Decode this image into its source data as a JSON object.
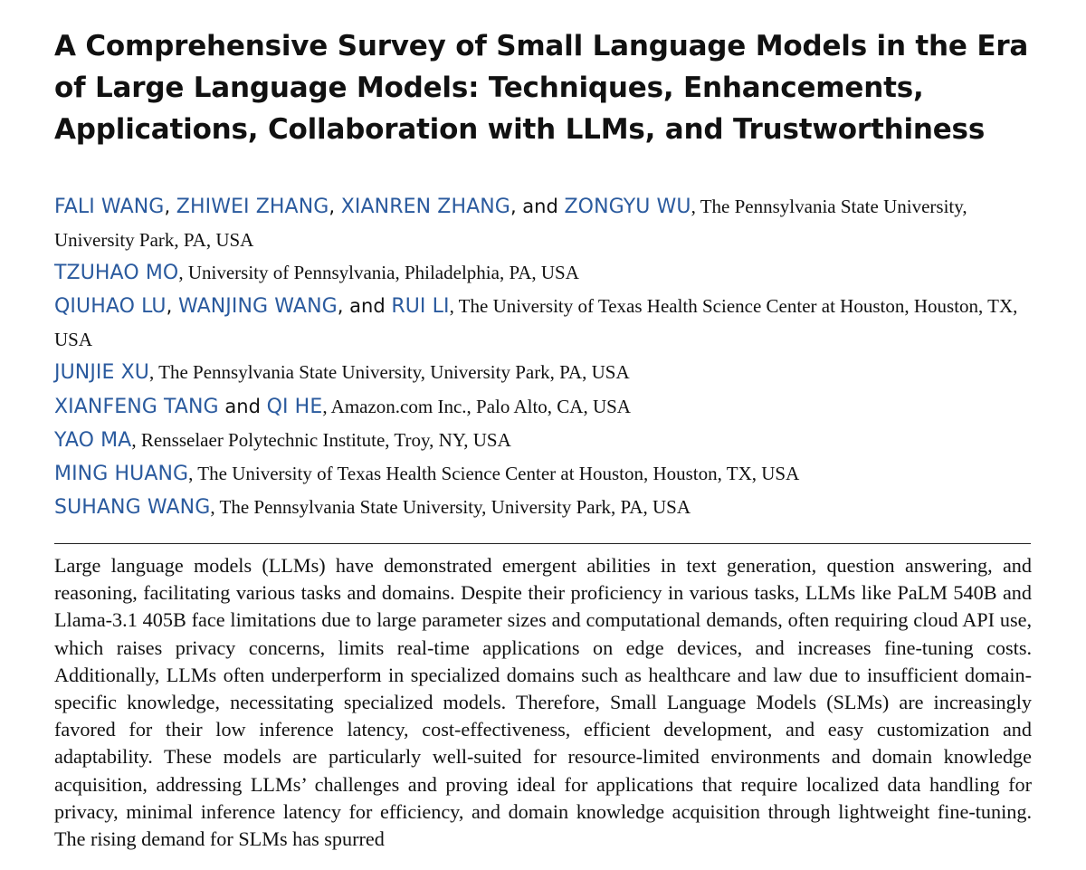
{
  "paper": {
    "title": "A Comprehensive Survey of Small Language Models in the Era of Large Language Models: Techniques, Enhancements, Applications, Collaboration with LLMs, and Trustworthiness",
    "author_groups": [
      {
        "names": [
          "FALI WANG",
          "ZHIWEI ZHANG",
          "XIANREN ZHANG",
          "ZONGYU WU"
        ],
        "separators": [
          ", ",
          ", ",
          ", and "
        ],
        "affiliation": ", The Pennsylvania State University, University Park, PA, USA"
      },
      {
        "names": [
          "TZUHAO MO"
        ],
        "separators": [],
        "affiliation": ", University of Pennsylvania, Philadelphia, PA, USA"
      },
      {
        "names": [
          "QIUHAO LU",
          "WANJING WANG",
          "RUI LI"
        ],
        "separators": [
          ", ",
          ", and "
        ],
        "affiliation": ", The University of Texas Health Science Center at Houston, Houston, TX, USA"
      },
      {
        "names": [
          "JUNJIE XU"
        ],
        "separators": [],
        "affiliation": ", The Pennsylvania State University, University Park, PA, USA"
      },
      {
        "names": [
          "XIANFENG TANG",
          "QI HE"
        ],
        "separators": [
          " and "
        ],
        "affiliation": ", Amazon.com Inc., Palo Alto, CA, USA"
      },
      {
        "names": [
          "YAO MA"
        ],
        "separators": [],
        "affiliation": ", Rensselaer Polytechnic Institute, Troy, NY, USA"
      },
      {
        "names": [
          "MING HUANG"
        ],
        "separators": [],
        "affiliation": ", The University of Texas Health Science Center at Houston, Houston, TX, USA"
      },
      {
        "names": [
          "SUHANG WANG"
        ],
        "separators": [],
        "affiliation": ", The Pennsylvania State University, University Park, PA, USA"
      }
    ],
    "abstract": "Large language models (LLMs) have demonstrated emergent abilities in text generation, question answering, and reasoning, facilitating various tasks and domains. Despite their proficiency in various tasks, LLMs like PaLM 540B and Llama-3.1 405B face limitations due to large parameter sizes and computational demands, often requiring cloud API use, which raises privacy concerns, limits real-time applications on edge devices, and increases fine-tuning costs. Additionally, LLMs often underperform in specialized domains such as healthcare and law due to insufficient domain-specific knowledge, necessitating specialized models. Therefore, Small Language Models (SLMs) are increasingly favored for their low inference latency, cost-effectiveness, efficient development, and easy customization and adaptability. These models are particularly well-suited for resource-limited environments and domain knowledge acquisition, addressing LLMs’ challenges and proving ideal for applications that require localized data handling for privacy, minimal inference latency for efficiency, and domain knowledge acquisition through lightweight fine-tuning. The rising demand for SLMs has spurred"
  }
}
